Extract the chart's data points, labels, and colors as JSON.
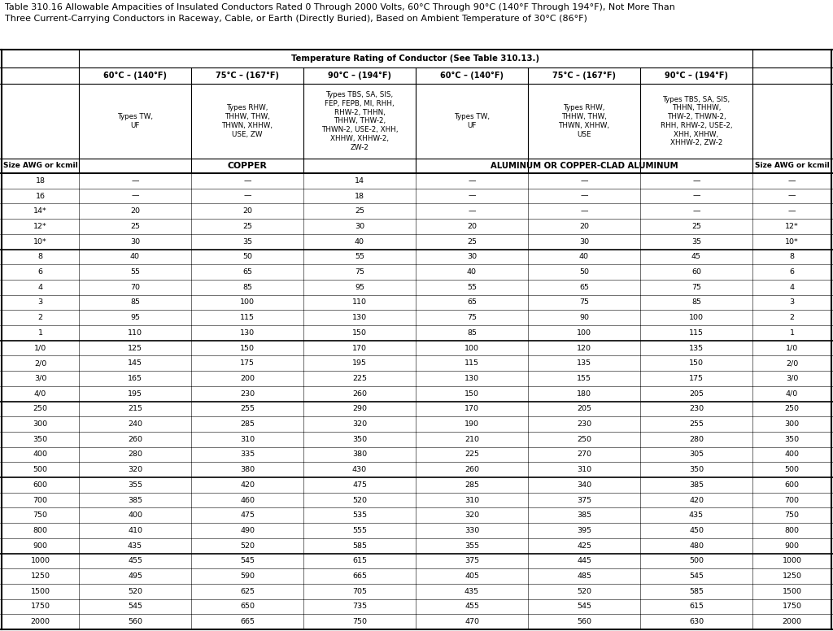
{
  "title_line1": "Table 310.16 Allowable Ampacities of Insulated Conductors Rated 0 Through 2000 Volts, 60°C Through 90°C (140°F Through 194°F), Not More Than",
  "title_line2": "Three Current-Carrying Conductors in Raceway, Cable, or Earth (Directly Buried), Based on Ambient Temperature of 30°C (86°F)",
  "header_main": "Temperature Rating of Conductor (See Table 310.13.)",
  "temp_headers": [
    "60°C – (140°F)",
    "75°C – (167°F)",
    "90°C – (194°F)",
    "60°C – (140°F)",
    "75°C – (167°F)",
    "90°C – (194°F)"
  ],
  "wire_type_copper_60": "Types TW,\nUF",
  "wire_type_copper_75": "Types RHW,\nTHHW, THW,\nTHWN, XHHW,\nUSE, ZW",
  "wire_type_copper_90": "Types TBS, SA, SIS,\nFEP, FEPB, MI, RHH,\nRHW-2, THHN,\nTHHW, THW-2,\nTHWN-2, USE-2, XHH,\nXHHW, XHHW-2,\nZW-2",
  "wire_type_alum_60": "Types TW,\nUF",
  "wire_type_alum_75": "Types RHW,\nTHHW, THW,\nTHWN, XHHW,\nUSE",
  "wire_type_alum_90": "Types TBS, SA, SIS,\nTHHN, THHW,\nTHW-2, THWN-2,\nRHH, RHW-2, USE-2,\nXHH, XHHW,\nXHHW-2, ZW-2",
  "col_header_size": "Size AWG or kcmil",
  "col_header_copper": "COPPER",
  "col_header_alum": "ALUMINUM OR COPPER-CLAD ALUMINUM",
  "rows": [
    [
      "18",
      "—",
      "—",
      "14",
      "—",
      "—",
      "—",
      "—"
    ],
    [
      "16",
      "—",
      "—",
      "18",
      "—",
      "—",
      "—",
      "—"
    ],
    [
      "14*",
      "20",
      "20",
      "25",
      "—",
      "—",
      "—",
      "—"
    ],
    [
      "12*",
      "25",
      "25",
      "30",
      "20",
      "20",
      "25",
      "12*"
    ],
    [
      "10*",
      "30",
      "35",
      "40",
      "25",
      "30",
      "35",
      "10*"
    ],
    [
      "8",
      "40",
      "50",
      "55",
      "30",
      "40",
      "45",
      "8"
    ],
    [
      "6",
      "55",
      "65",
      "75",
      "40",
      "50",
      "60",
      "6"
    ],
    [
      "4",
      "70",
      "85",
      "95",
      "55",
      "65",
      "75",
      "4"
    ],
    [
      "3",
      "85",
      "100",
      "110",
      "65",
      "75",
      "85",
      "3"
    ],
    [
      "2",
      "95",
      "115",
      "130",
      "75",
      "90",
      "100",
      "2"
    ],
    [
      "1",
      "110",
      "130",
      "150",
      "85",
      "100",
      "115",
      "1"
    ],
    [
      "1/0",
      "125",
      "150",
      "170",
      "100",
      "120",
      "135",
      "1/0"
    ],
    [
      "2/0",
      "145",
      "175",
      "195",
      "115",
      "135",
      "150",
      "2/0"
    ],
    [
      "3/0",
      "165",
      "200",
      "225",
      "130",
      "155",
      "175",
      "3/0"
    ],
    [
      "4/0",
      "195",
      "230",
      "260",
      "150",
      "180",
      "205",
      "4/0"
    ],
    [
      "250",
      "215",
      "255",
      "290",
      "170",
      "205",
      "230",
      "250"
    ],
    [
      "300",
      "240",
      "285",
      "320",
      "190",
      "230",
      "255",
      "300"
    ],
    [
      "350",
      "260",
      "310",
      "350",
      "210",
      "250",
      "280",
      "350"
    ],
    [
      "400",
      "280",
      "335",
      "380",
      "225",
      "270",
      "305",
      "400"
    ],
    [
      "500",
      "320",
      "380",
      "430",
      "260",
      "310",
      "350",
      "500"
    ],
    [
      "600",
      "355",
      "420",
      "475",
      "285",
      "340",
      "385",
      "600"
    ],
    [
      "700",
      "385",
      "460",
      "520",
      "310",
      "375",
      "420",
      "700"
    ],
    [
      "750",
      "400",
      "475",
      "535",
      "320",
      "385",
      "435",
      "750"
    ],
    [
      "800",
      "410",
      "490",
      "555",
      "330",
      "395",
      "450",
      "800"
    ],
    [
      "900",
      "435",
      "520",
      "585",
      "355",
      "425",
      "480",
      "900"
    ],
    [
      "1000",
      "455",
      "545",
      "615",
      "375",
      "445",
      "500",
      "1000"
    ],
    [
      "1250",
      "495",
      "590",
      "665",
      "405",
      "485",
      "545",
      "1250"
    ],
    [
      "1500",
      "520",
      "625",
      "705",
      "435",
      "520",
      "585",
      "1500"
    ],
    [
      "1750",
      "545",
      "650",
      "735",
      "455",
      "545",
      "615",
      "1750"
    ],
    [
      "2000",
      "560",
      "665",
      "750",
      "470",
      "560",
      "630",
      "2000"
    ]
  ],
  "group_separators_after": [
    4,
    10,
    14,
    19,
    24
  ],
  "bg_color": "#ffffff",
  "text_color": "#000000",
  "title_fontsize": 8.0,
  "header_fontsize": 7.0,
  "cell_fontsize": 6.8,
  "wire_fontsize": 6.3
}
